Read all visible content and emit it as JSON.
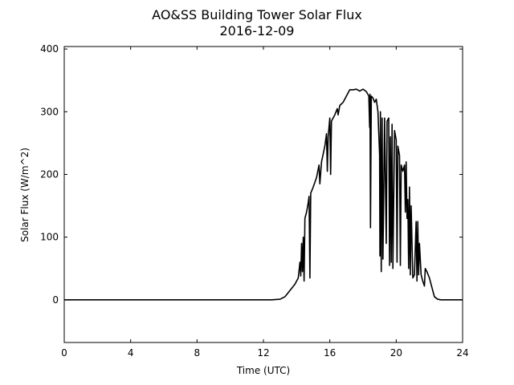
{
  "chart_data": {
    "type": "line",
    "title": "AO&SS Building Tower Solar Flux",
    "subtitle": "2016-12-09",
    "x_label": "Time (UTC)",
    "y_label": "Solar Flux (W/m^2)",
    "xlim": [
      0,
      24
    ],
    "xticks": [
      0,
      4,
      8,
      12,
      16,
      20,
      24
    ],
    "ylim": [
      -68,
      404
    ],
    "yticks": [
      0,
      100,
      200,
      300,
      400
    ],
    "series": [
      {
        "color": "#000000",
        "x": [
          0,
          12.5,
          13,
          13.3,
          13.6,
          13.9,
          14.1,
          14.2,
          14.25,
          14.3,
          14.35,
          14.4,
          14.45,
          14.5,
          14.6,
          14.7,
          14.75,
          14.8,
          14.85,
          15.0,
          15.2,
          15.35,
          15.4,
          15.5,
          15.7,
          15.8,
          15.85,
          15.9,
          16.0,
          16.05,
          16.1,
          16.3,
          16.45,
          16.5,
          16.6,
          16.8,
          17.0,
          17.2,
          17.4,
          17.6,
          17.8,
          18.0,
          18.2,
          18.35,
          18.4,
          18.42,
          18.45,
          18.5,
          18.6,
          18.7,
          18.8,
          18.9,
          19.0,
          19.02,
          19.05,
          19.1,
          19.15,
          19.2,
          19.3,
          19.4,
          19.45,
          19.55,
          19.6,
          19.65,
          19.7,
          19.75,
          19.8,
          19.9,
          20.0,
          20.05,
          20.1,
          20.2,
          20.25,
          20.3,
          20.4,
          20.5,
          20.55,
          20.6,
          20.65,
          20.7,
          20.75,
          20.8,
          20.85,
          20.9,
          21.0,
          21.1,
          21.2,
          21.25,
          21.3,
          21.35,
          21.4,
          21.5,
          21.6,
          21.7,
          21.75,
          21.85,
          22.0,
          22.1,
          22.2,
          22.3,
          22.5,
          22.7,
          24
        ],
        "values": [
          0,
          0,
          1,
          5,
          15,
          25,
          35,
          60,
          38,
          90,
          45,
          100,
          30,
          130,
          140,
          155,
          165,
          35,
          170,
          180,
          195,
          215,
          185,
          220,
          245,
          265,
          205,
          260,
          290,
          200,
          285,
          295,
          305,
          295,
          310,
          315,
          325,
          335,
          335,
          336,
          333,
          336,
          332,
          325,
          275,
          328,
          115,
          325,
          322,
          315,
          320,
          300,
          230,
          70,
          300,
          45,
          290,
          65,
          290,
          90,
          285,
          290,
          55,
          260,
          60,
          280,
          50,
          270,
          255,
          60,
          245,
          230,
          55,
          215,
          205,
          215,
          140,
          220,
          130,
          160,
          50,
          180,
          40,
          150,
          35,
          40,
          125,
          30,
          125,
          40,
          90,
          40,
          30,
          22,
          50,
          45,
          35,
          25,
          15,
          5,
          1,
          0,
          0
        ]
      }
    ]
  }
}
